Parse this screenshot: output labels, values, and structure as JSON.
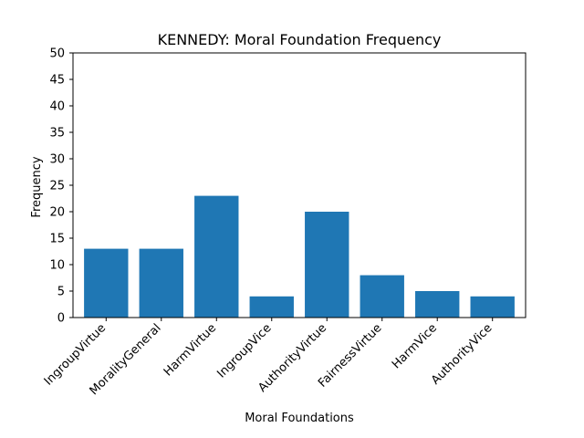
{
  "chart_data": {
    "type": "bar",
    "title": "KENNEDY: Moral Foundation Frequency",
    "xlabel": "Moral Foundations",
    "ylabel": "Frequency",
    "categories": [
      "IngroupVirtue",
      "MoralityGeneral",
      "HarmVirtue",
      "IngroupVice",
      "AuthorityVirtue",
      "FairnessVirtue",
      "HarmVice",
      "AuthorityVice"
    ],
    "values": [
      13,
      13,
      23,
      4,
      20,
      8,
      5,
      4
    ],
    "ylim": [
      0,
      50
    ],
    "yticks": [
      0,
      5,
      10,
      15,
      20,
      25,
      30,
      35,
      40,
      45,
      50
    ],
    "bar_color": "#1f77b4",
    "grid": false,
    "legend": "none"
  }
}
